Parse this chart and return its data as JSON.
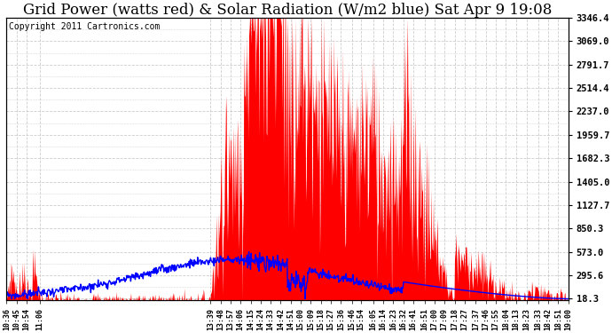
{
  "title": "Grid Power (watts red) & Solar Radiation (W/m2 blue) Sat Apr 9 19:08",
  "copyright": "Copyright 2011 Cartronics.com",
  "y_right_ticks": [
    18.3,
    295.6,
    573.0,
    850.3,
    1127.7,
    1405.0,
    1682.3,
    1959.7,
    2237.0,
    2514.4,
    2791.7,
    3069.0,
    3346.4
  ],
  "y_max": 3346.4,
  "y_min": 0,
  "background_color": "#ffffff",
  "grid_color": "#c8c8c8",
  "bar_color": "#ff0000",
  "line_color": "#0000ff",
  "title_fontsize": 12,
  "copyright_fontsize": 7
}
